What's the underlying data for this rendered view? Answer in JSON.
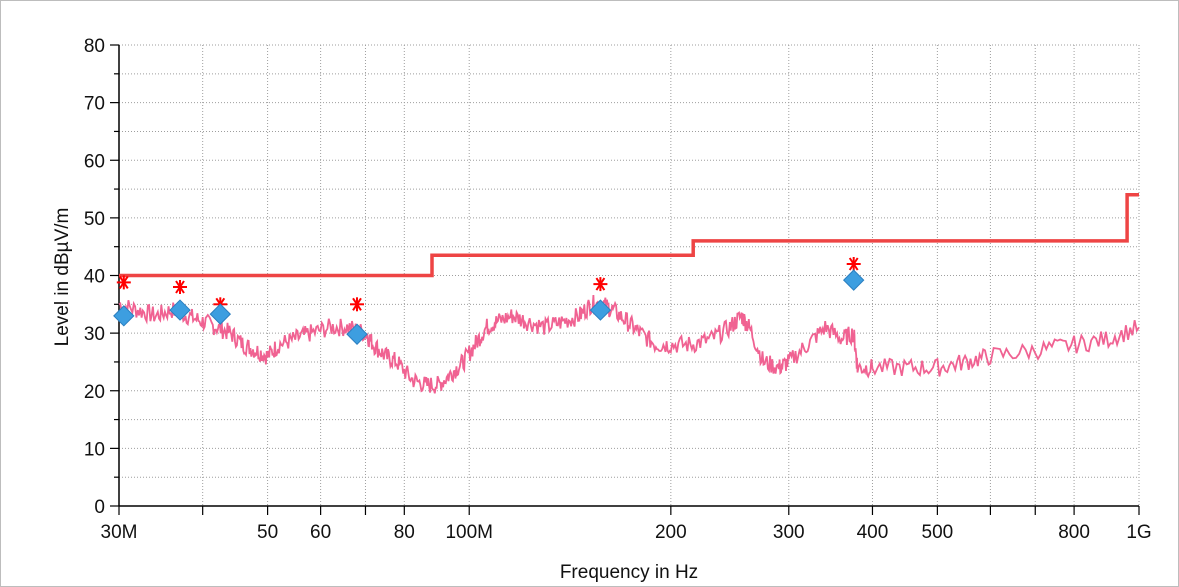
{
  "chart_data": {
    "type": "line",
    "xlabel": "Frequency in Hz",
    "ylabel": "Level in dBµV/m",
    "xscale": "log",
    "xlim": [
      30000000,
      1000000000
    ],
    "ylim": [
      0,
      80
    ],
    "grid": true,
    "y_ticks": [
      {
        "value": 0,
        "label": "0"
      },
      {
        "value": 10,
        "label": "10"
      },
      {
        "value": 20,
        "label": "20"
      },
      {
        "value": 30,
        "label": "30"
      },
      {
        "value": 40,
        "label": "40"
      },
      {
        "value": 50,
        "label": "50"
      },
      {
        "value": 60,
        "label": "60"
      },
      {
        "value": 70,
        "label": "70"
      },
      {
        "value": 80,
        "label": "80"
      }
    ],
    "x_ticks": [
      {
        "value": 30000000,
        "label": "30M"
      },
      {
        "value": 40000000,
        "label": ""
      },
      {
        "value": 50000000,
        "label": "50"
      },
      {
        "value": 60000000,
        "label": "60"
      },
      {
        "value": 70000000,
        "label": ""
      },
      {
        "value": 80000000,
        "label": "80"
      },
      {
        "value": 100000000,
        "label": "100M"
      },
      {
        "value": 200000000,
        "label": "200"
      },
      {
        "value": 300000000,
        "label": "300"
      },
      {
        "value": 400000000,
        "label": "400"
      },
      {
        "value": 500000000,
        "label": "500"
      },
      {
        "value": 600000000,
        "label": ""
      },
      {
        "value": 700000000,
        "label": ""
      },
      {
        "value": 800000000,
        "label": "800"
      },
      {
        "value": 1000000000,
        "label": "1G"
      }
    ],
    "limit_line": {
      "color": "#ee4444",
      "points": [
        [
          30000000,
          40
        ],
        [
          88000000,
          40
        ],
        [
          88000000,
          43.5
        ],
        [
          216000000,
          43.5
        ],
        [
          216000000,
          46
        ],
        [
          960000000,
          46
        ],
        [
          960000000,
          54
        ],
        [
          1000000000,
          54
        ]
      ]
    },
    "trace": {
      "color": "#f06292",
      "points": [
        [
          30000000,
          35
        ],
        [
          32000000,
          34
        ],
        [
          34000000,
          33
        ],
        [
          36000000,
          34
        ],
        [
          38000000,
          33
        ],
        [
          40000000,
          32
        ],
        [
          42000000,
          31
        ],
        [
          44000000,
          30
        ],
        [
          46000000,
          28
        ],
        [
          48000000,
          27
        ],
        [
          50000000,
          26
        ],
        [
          52000000,
          28
        ],
        [
          55000000,
          29
        ],
        [
          58000000,
          30
        ],
        [
          62000000,
          31
        ],
        [
          66000000,
          31
        ],
        [
          70000000,
          30
        ],
        [
          72000000,
          28
        ],
        [
          75000000,
          26
        ],
        [
          78000000,
          25
        ],
        [
          82000000,
          22
        ],
        [
          86000000,
          21
        ],
        [
          90000000,
          21
        ],
        [
          94000000,
          23
        ],
        [
          98000000,
          25
        ],
        [
          102000000,
          28
        ],
        [
          106000000,
          31
        ],
        [
          110000000,
          32
        ],
        [
          116000000,
          33
        ],
        [
          122000000,
          32
        ],
        [
          130000000,
          31
        ],
        [
          138000000,
          32
        ],
        [
          146000000,
          33
        ],
        [
          152000000,
          35
        ],
        [
          158000000,
          35
        ],
        [
          164000000,
          34
        ],
        [
          172000000,
          32
        ],
        [
          180000000,
          30
        ],
        [
          190000000,
          28
        ],
        [
          200000000,
          28
        ],
        [
          215000000,
          28
        ],
        [
          230000000,
          29
        ],
        [
          245000000,
          31
        ],
        [
          255000000,
          33
        ],
        [
          262000000,
          31
        ],
        [
          275000000,
          25
        ],
        [
          290000000,
          24
        ],
        [
          300000000,
          25
        ],
        [
          320000000,
          28
        ],
        [
          340000000,
          31
        ],
        [
          360000000,
          29
        ],
        [
          375000000,
          30
        ],
        [
          380000000,
          24
        ],
        [
          400000000,
          24
        ],
        [
          450000000,
          24
        ],
        [
          500000000,
          24
        ],
        [
          550000000,
          25
        ],
        [
          600000000,
          26
        ],
        [
          700000000,
          27
        ],
        [
          800000000,
          28
        ],
        [
          900000000,
          29
        ],
        [
          1000000000,
          31
        ]
      ]
    },
    "peaks": {
      "marker": "star",
      "color": "#ff0000",
      "points": [
        [
          30500000,
          38.8
        ],
        [
          37000000,
          38
        ],
        [
          42500000,
          35
        ],
        [
          68000000,
          35
        ],
        [
          157000000,
          38.5
        ],
        [
          375000000,
          42
        ]
      ]
    },
    "final_measurements": {
      "marker": "diamond",
      "color": "#3d9ee0",
      "points": [
        [
          30500000,
          33
        ],
        [
          37000000,
          34
        ],
        [
          42500000,
          33.3
        ],
        [
          68000000,
          29.8
        ],
        [
          157000000,
          34
        ],
        [
          375000000,
          39.2
        ]
      ]
    }
  }
}
